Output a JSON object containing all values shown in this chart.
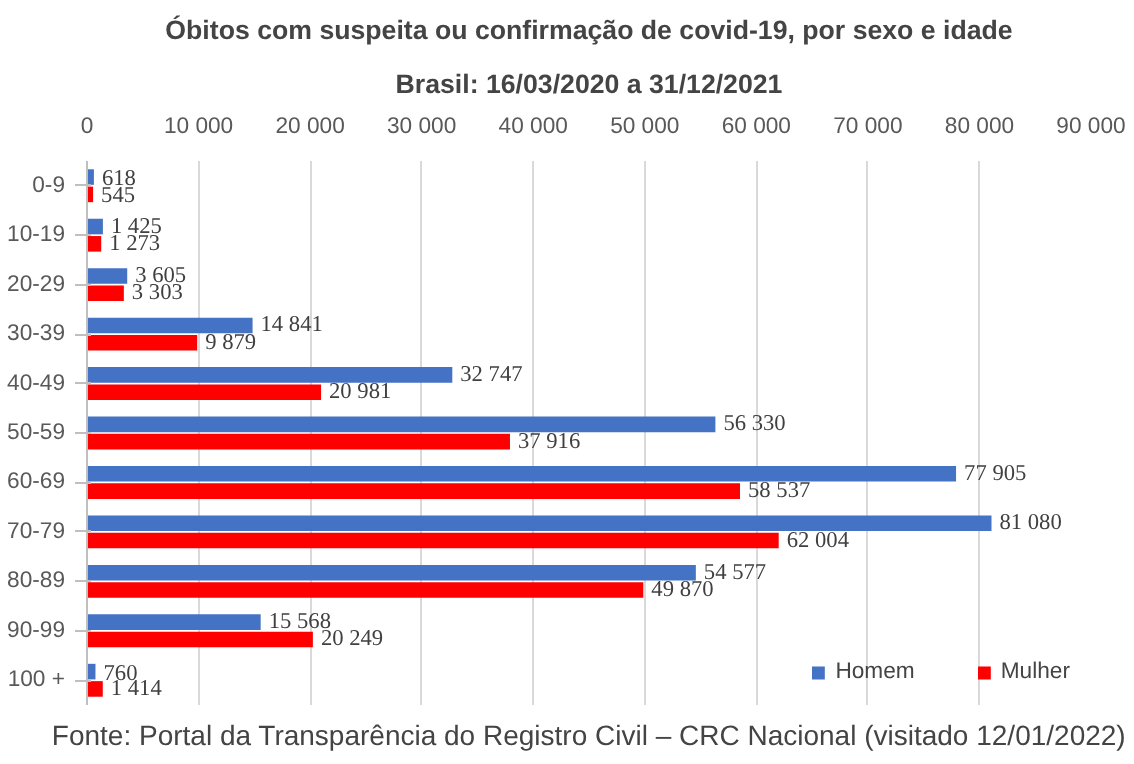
{
  "chart_data": {
    "type": "bar",
    "orientation": "horizontal",
    "title": "Óbitos com suspeita ou confirmação de covid-19, por sexo e idade",
    "subtitle": "Brasil: 16/03/2020 a 31/12/2021",
    "categories": [
      "0-9",
      "10-19",
      "20-29",
      "30-39",
      "40-49",
      "50-59",
      "60-69",
      "70-79",
      "80-89",
      "90-99",
      "100 +"
    ],
    "series": [
      {
        "name": "Homem",
        "color": "#4472c4",
        "values": [
          618,
          1425,
          3605,
          14841,
          32747,
          56330,
          77905,
          81080,
          54577,
          15568,
          760
        ],
        "value_labels": [
          "618",
          "1 425",
          "3 605",
          "14 841",
          "32 747",
          "56 330",
          "77 905",
          "81 080",
          "54 577",
          "15 568",
          "760"
        ]
      },
      {
        "name": "Mulher",
        "color": "#ff0000",
        "values": [
          545,
          1273,
          3303,
          9879,
          20981,
          37916,
          58537,
          62004,
          49870,
          20249,
          1414
        ],
        "value_labels": [
          "545",
          "1 273",
          "3 303",
          "9 879",
          "20 981",
          "37 916",
          "58 537",
          "62 004",
          "49 870",
          "20 249",
          "1 414"
        ]
      }
    ],
    "xlim": [
      0,
      90000
    ],
    "xticks": [
      0,
      {
        "value": 10000,
        "label": "10 000"
      },
      {
        "value": 20000,
        "label": "20 000"
      },
      {
        "value": 30000,
        "label": "30 000"
      },
      {
        "value": 40000,
        "label": "40 000"
      },
      {
        "value": 50000,
        "label": "50 000"
      },
      {
        "value": 60000,
        "label": "60 000"
      },
      {
        "value": 70000,
        "label": "70 000"
      },
      {
        "value": 80000,
        "label": "80 000"
      },
      {
        "value": 90000,
        "label": "90 000"
      }
    ],
    "grid": "x",
    "legend": "bottom right",
    "annotations": [
      "Fonte: Portal da Transparência do Registro Civil – CRC Nacional (visitado 12/01/2022)"
    ]
  }
}
